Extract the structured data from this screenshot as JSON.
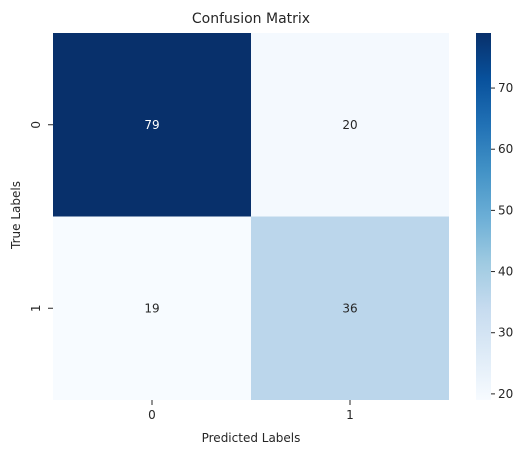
{
  "chart_data": {
    "type": "heatmap",
    "title": "Confusion Matrix",
    "xlabel": "Predicted Labels",
    "ylabel": "True Labels",
    "x_categories": [
      "0",
      "1"
    ],
    "y_categories": [
      "0",
      "1"
    ],
    "values": [
      [
        79,
        20
      ],
      [
        19,
        36
      ]
    ],
    "annotations": [
      [
        "79",
        "20"
      ],
      [
        "19",
        "36"
      ]
    ],
    "colormap": "Blues",
    "colorbar": {
      "vmin": 19,
      "vmax": 79,
      "ticks": [
        20,
        30,
        40,
        50,
        60,
        70
      ],
      "tick_labels": [
        "20",
        "30",
        "40",
        "50",
        "60",
        "70"
      ]
    },
    "grid": false,
    "legend": "colorbar-right"
  }
}
